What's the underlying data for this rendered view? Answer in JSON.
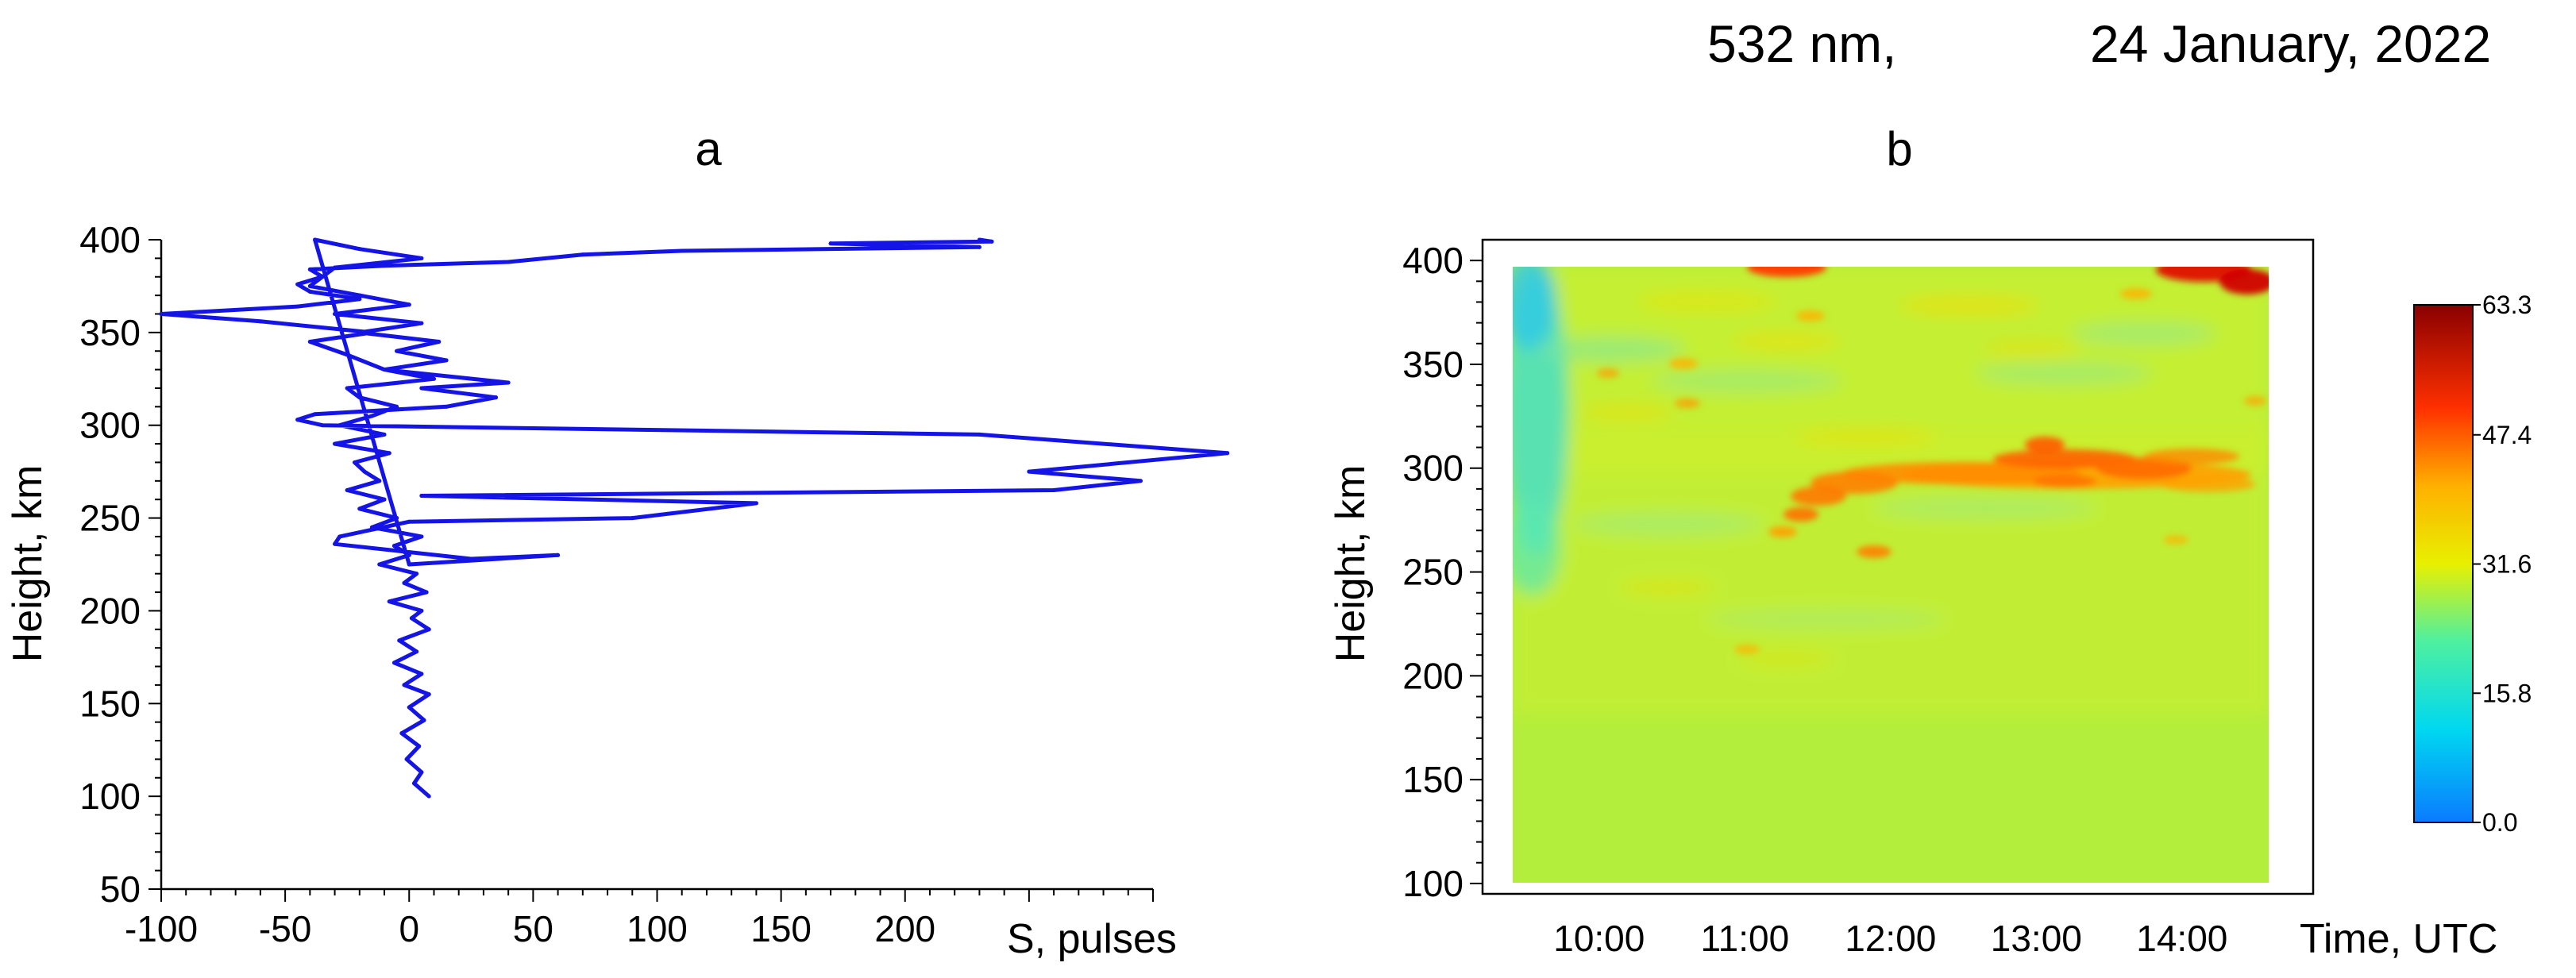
{
  "header": {
    "wavelength": "532 nm,",
    "date": "24 January, 2022"
  },
  "chart_data": [
    {
      "type": "line",
      "panel_label": "a",
      "xlabel": "S, pulses",
      "ylabel": "Height, km",
      "xlim": [
        -100,
        300
      ],
      "ylim": [
        50,
        400
      ],
      "x_ticks": [
        "-100",
        "-50",
        "0",
        "50",
        "100",
        "150",
        "200"
      ],
      "y_ticks": [
        "50",
        "100",
        "150",
        "200",
        "250",
        "300",
        "350",
        "400"
      ],
      "line_color": "#1414e6",
      "series": [
        {
          "x": [
            8,
            2,
            5,
            -1,
            4,
            -3,
            6,
            0,
            8,
            -2,
            5,
            -6,
            3,
            -4,
            8,
            1,
            5,
            -8,
            7,
            -2,
            3,
            -12,
            0,
            -6,
            5,
            -15,
            -5,
            -20,
            -10,
            -25,
            -12,
            -18,
            -22,
            -8,
            -30,
            -10,
            -28,
            -15,
            -5,
            -20,
            -25,
            10,
            -10,
            15,
            -5,
            12,
            -20,
            5,
            -30,
            0,
            -20,
            -40,
            -35,
            -30,
            5,
            -20,
            -38,
            0,
            60,
            25,
            -30,
            -28,
            0,
            90,
            140,
            5,
            260,
            295,
            250,
            330,
            230,
            -35,
            -45,
            -38,
            15,
            35,
            5,
            40,
            -10,
            -25,
            -40,
            -15,
            -60,
            -100,
            -45,
            -20,
            -40,
            -45,
            -35,
            -40,
            -10,
            40,
            55,
            70,
            110,
            230,
            170,
            235,
            230
          ],
          "y": [
            100,
            107,
            113,
            120,
            127,
            134,
            141,
            148,
            155,
            160,
            166,
            172,
            178,
            184,
            190,
            196,
            200,
            205,
            210,
            215,
            220,
            225,
            230,
            235,
            240,
            245,
            250,
            255,
            260,
            265,
            270,
            275,
            280,
            285,
            290,
            295,
            300,
            305,
            310,
            315,
            320,
            325,
            330,
            335,
            340,
            345,
            350,
            355,
            360,
            365,
            370,
            375,
            380,
            385,
            390,
            395,
            400,
            225,
            230,
            228,
            236,
            240,
            248,
            250,
            258,
            262,
            265,
            270,
            275,
            285,
            295,
            300,
            303,
            306,
            310,
            315,
            320,
            323,
            330,
            338,
            345,
            350,
            356,
            360,
            364,
            368,
            372,
            376,
            380,
            384,
            386,
            388,
            390,
            392,
            394,
            396,
            398,
            399,
            400
          ]
        }
      ]
    },
    {
      "type": "heatmap",
      "panel_label": "b",
      "xlabel": "Time, UTC",
      "ylabel": "Height, km",
      "x_ticks": [
        "10:00",
        "11:00",
        "12:00",
        "13:00",
        "14:00"
      ],
      "y_ticks": [
        "100",
        "150",
        "200",
        "250",
        "300",
        "350",
        "400"
      ],
      "xlim_hours": [
        9.2,
        14.9
      ],
      "data_x_range_hours": [
        9.32,
        14.63
      ],
      "ylim": [
        100,
        410
      ],
      "data_y_range": [
        100,
        400
      ],
      "colorbar": {
        "min": 0.0,
        "max": 63.3,
        "ticks": [
          "0.0",
          "15.8",
          "31.6",
          "47.4",
          "63.3"
        ]
      },
      "features": {
        "background_level": 29,
        "enhanced_layer": {
          "height_km": 295,
          "time_start": "11:10",
          "time_end": "14:40",
          "peak_value": 50
        },
        "top_patches": [
          {
            "time": "10:45",
            "height_km": 398,
            "value": 55
          },
          {
            "time": "14:25",
            "height_km": 396,
            "value": 58
          }
        ],
        "low_value_edge": {
          "time": "09:20",
          "height_range_km": [
            230,
            400
          ],
          "value": 16
        }
      }
    }
  ]
}
